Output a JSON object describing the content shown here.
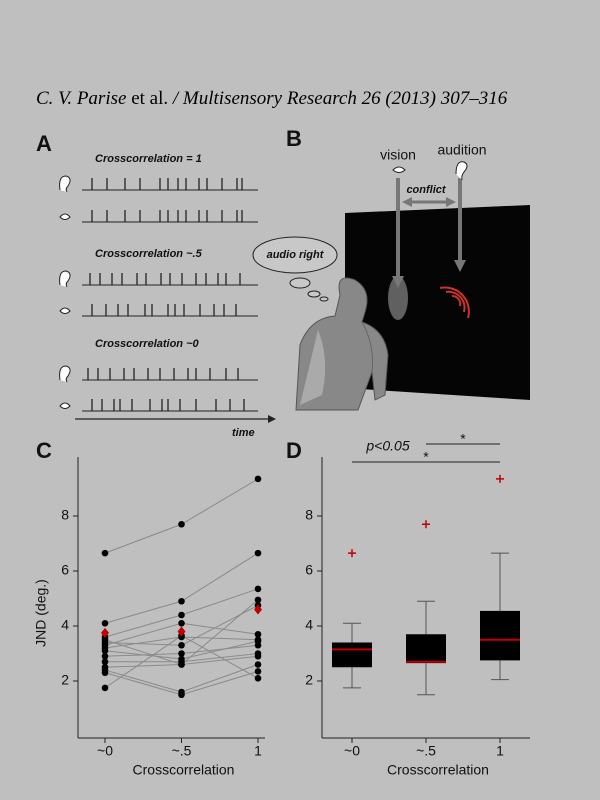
{
  "header": {
    "authors": "C. V. Parise",
    "etal": "et al.",
    "journal": "/ Multisensory Research 26 (2013) 307–316"
  },
  "panel_labels": [
    "A",
    "B",
    "C",
    "D"
  ],
  "panel_a": {
    "labels": [
      "Crosscorrelation = 1",
      "Crosscorrelation  ~.5",
      "Crosscorrelation  ~0"
    ],
    "time": "time"
  },
  "panel_b": {
    "vision": "vision",
    "audition": "audition",
    "conflict": "conflict",
    "bubble": "audio right"
  },
  "chart_data": [
    {
      "type": "line",
      "categories": [
        "~0",
        "~.5",
        "1"
      ],
      "xlabel": "Crosscorrelation",
      "ylabel": "JND (deg.)",
      "ylim": [
        0,
        10
      ],
      "yticks": [
        2,
        4,
        6,
        8
      ],
      "line_color": "#8a8a8a",
      "series": [
        {
          "color": "#000",
          "values": [
            6.65,
            7.7,
            9.35
          ]
        },
        {
          "color": "#000",
          "values": [
            4.1,
            4.9,
            6.65
          ]
        },
        {
          "color": "#000",
          "values": [
            3.6,
            4.4,
            5.35
          ]
        },
        {
          "color": "#000",
          "values": [
            3.5,
            2.6,
            4.95
          ]
        },
        {
          "color": "#000",
          "values": [
            3.4,
            3.3,
            4.75
          ]
        },
        {
          "color": "#000",
          "values": [
            3.3,
            4.1,
            3.7
          ]
        },
        {
          "color": "#000",
          "values": [
            3.2,
            3.6,
            3.5
          ]
        },
        {
          "color": "#000",
          "values": [
            3.1,
            2.8,
            3.45
          ]
        },
        {
          "color": "#000",
          "values": [
            2.9,
            3.0,
            3.3
          ]
        },
        {
          "color": "#000",
          "values": [
            2.7,
            2.7,
            3.0
          ]
        },
        {
          "color": "#000",
          "values": [
            2.5,
            2.6,
            2.9
          ]
        },
        {
          "color": "#000",
          "values": [
            2.4,
            1.6,
            2.6
          ]
        },
        {
          "color": "#000",
          "values": [
            2.3,
            1.5,
            2.35
          ]
        },
        {
          "color": "#000",
          "values": [
            1.75,
            3.65,
            2.1
          ]
        },
        {
          "color": "#c00000",
          "marker": "diamond",
          "values": [
            3.75,
            3.8,
            4.6
          ]
        }
      ]
    },
    {
      "type": "box",
      "categories": [
        "~0",
        "~.5",
        "1"
      ],
      "xlabel": "Crosscorrelation",
      "ylim": [
        0,
        10
      ],
      "yticks": [
        2,
        4,
        6,
        8
      ],
      "color": "#000",
      "median_color": "#c00000",
      "boxes": [
        {
          "whislo": 1.75,
          "q1": 2.5,
          "med": 3.15,
          "q3": 3.4,
          "whishi": 4.1,
          "fliers": [
            6.65
          ]
        },
        {
          "whislo": 1.5,
          "q1": 2.65,
          "med": 2.7,
          "q3": 3.7,
          "whishi": 4.9,
          "fliers": [
            7.7
          ]
        },
        {
          "whislo": 2.05,
          "q1": 2.75,
          "med": 3.5,
          "q3": 4.55,
          "whishi": 6.65,
          "fliers": [
            9.35
          ]
        }
      ],
      "annotations": [
        "p<0.05",
        "*",
        "*"
      ]
    }
  ]
}
